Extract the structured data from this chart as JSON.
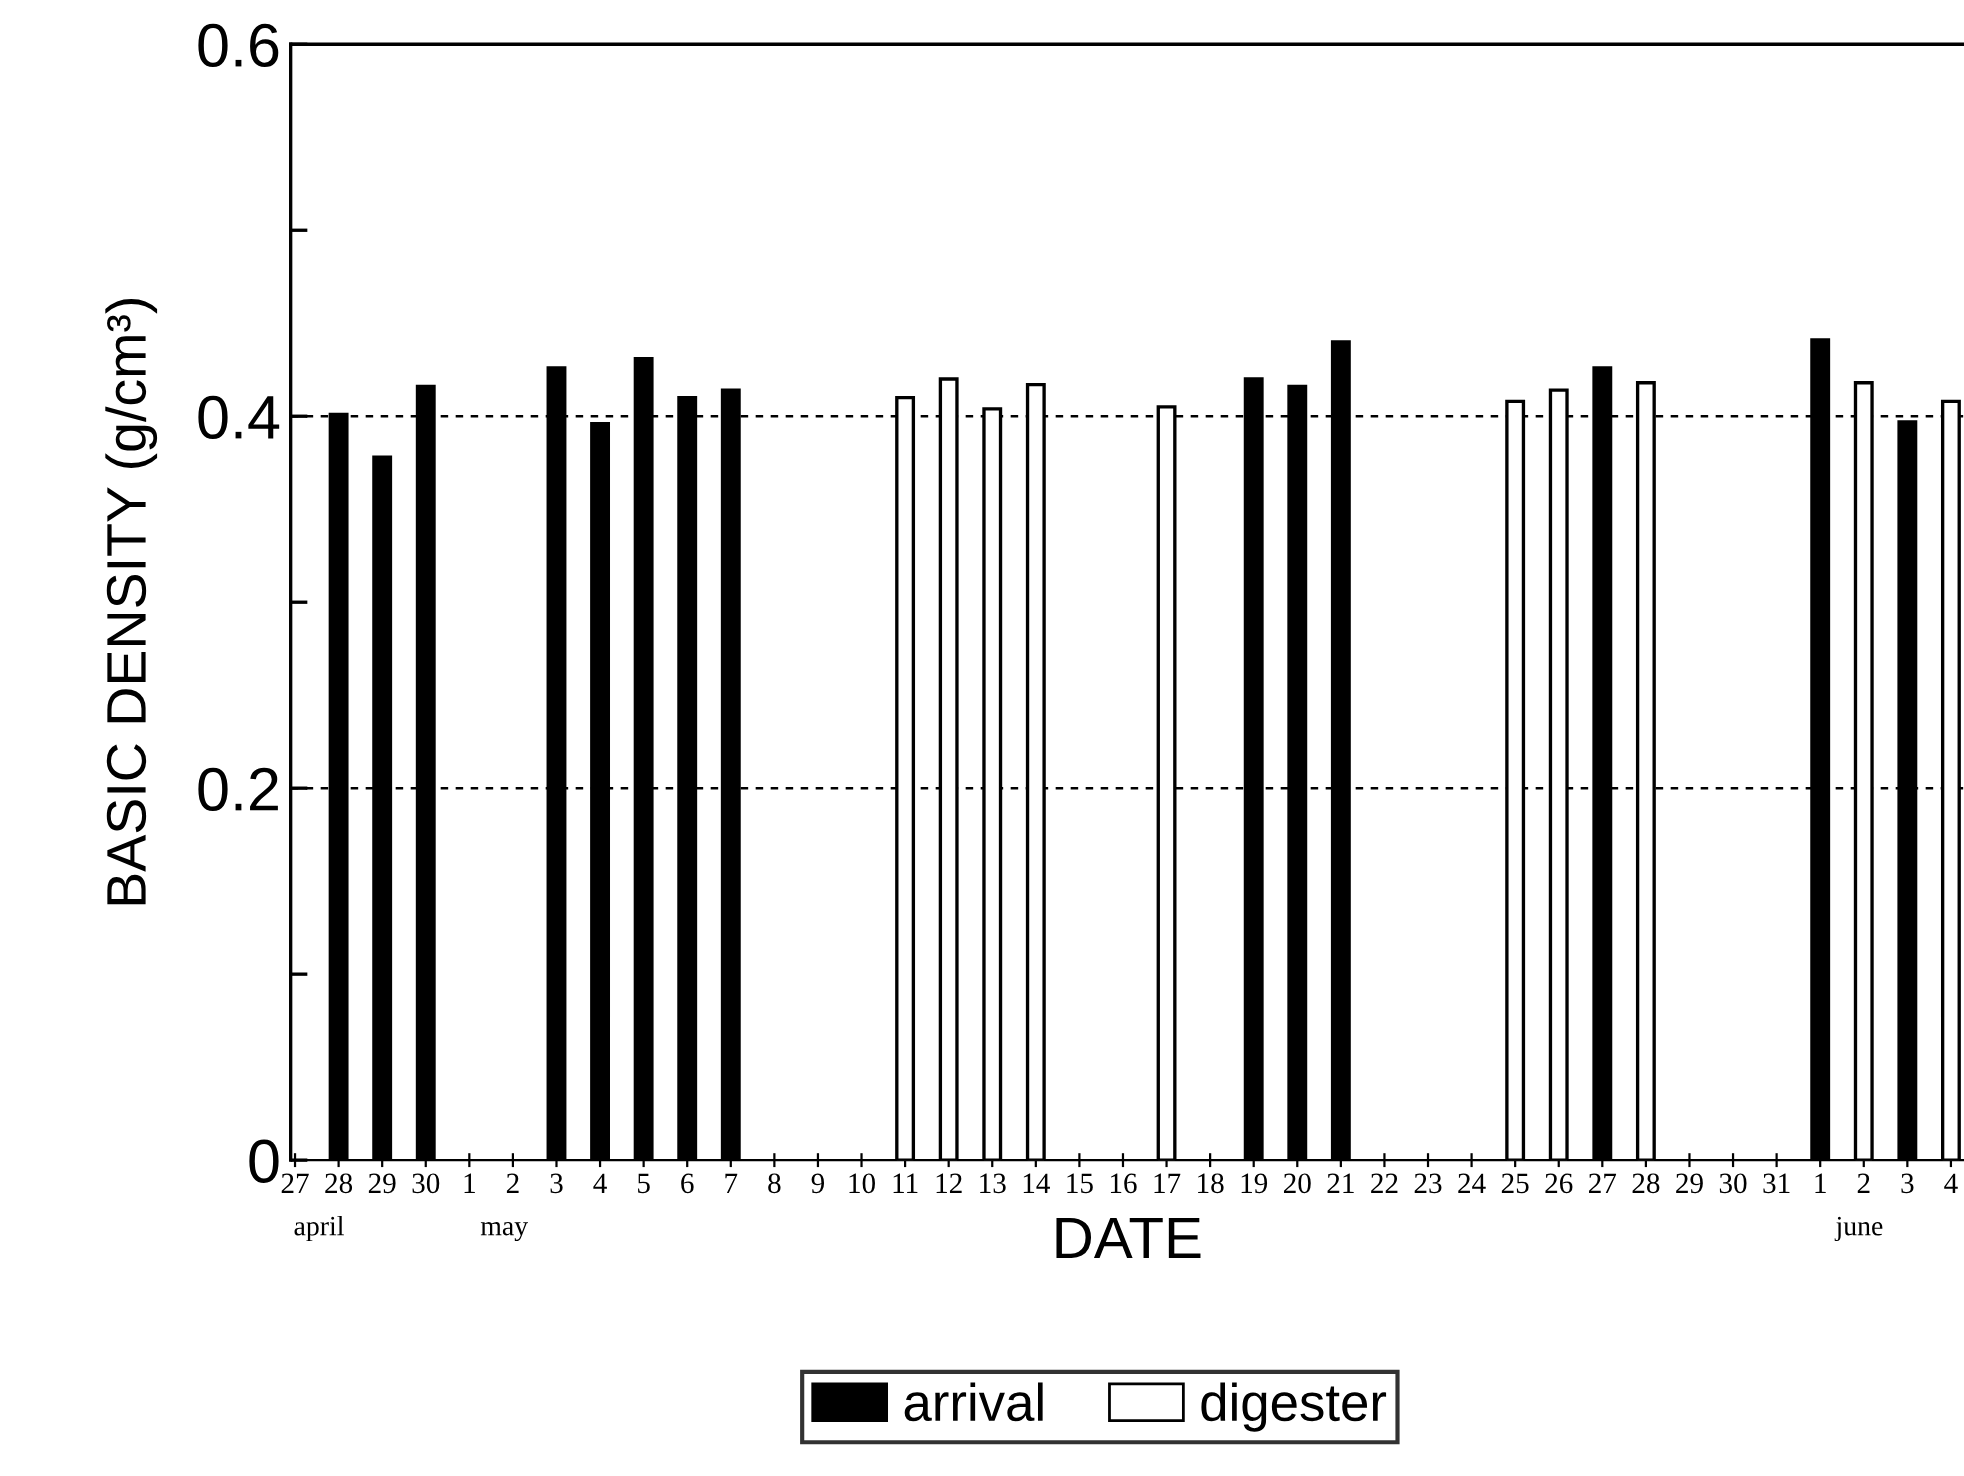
{
  "chart_data": {
    "type": "bar",
    "xlabel": "DATE",
    "ylabel": "BASIC DENSITY (g/cm³)",
    "categories": [
      "27",
      "28",
      "29",
      "30",
      "1",
      "2",
      "3",
      "4",
      "5",
      "6",
      "7",
      "8",
      "9",
      "10",
      "11",
      "12",
      "13",
      "14",
      "15",
      "16",
      "17",
      "18",
      "19",
      "20",
      "21",
      "22",
      "23",
      "24",
      "25",
      "26",
      "27",
      "28",
      "29",
      "30",
      "31",
      "1",
      "2",
      "3",
      "4"
    ],
    "series": [
      {
        "name": "arrival",
        "color": "#000000",
        "values": [
          null,
          0.401,
          0.378,
          0.416,
          null,
          null,
          0.426,
          0.396,
          0.431,
          0.41,
          0.414,
          null,
          null,
          null,
          null,
          null,
          null,
          null,
          null,
          null,
          null,
          null,
          0.42,
          0.416,
          0.44,
          null,
          null,
          null,
          null,
          null,
          0.426,
          null,
          null,
          null,
          null,
          0.441,
          null,
          0.397,
          null
        ]
      },
      {
        "name": "digester",
        "color": "#ffffff",
        "values": [
          null,
          null,
          null,
          null,
          null,
          null,
          null,
          null,
          null,
          null,
          null,
          null,
          null,
          null,
          0.41,
          0.42,
          0.404,
          0.417,
          null,
          null,
          0.405,
          null,
          null,
          null,
          null,
          null,
          null,
          null,
          0.408,
          0.414,
          null,
          0.418,
          null,
          null,
          null,
          null,
          0.418,
          null,
          0.408
        ]
      }
    ],
    "ylim": [
      0,
      0.6
    ],
    "yticks": [
      0,
      {
        "value": 0.1,
        "label": null
      },
      0.2,
      {
        "value": 0.3,
        "label": null
      },
      0.4,
      {
        "value": 0.5,
        "label": null
      },
      0.6
    ],
    "grid": "y",
    "legend": "bottom",
    "annotations": [
      "april",
      "may",
      "june"
    ]
  }
}
